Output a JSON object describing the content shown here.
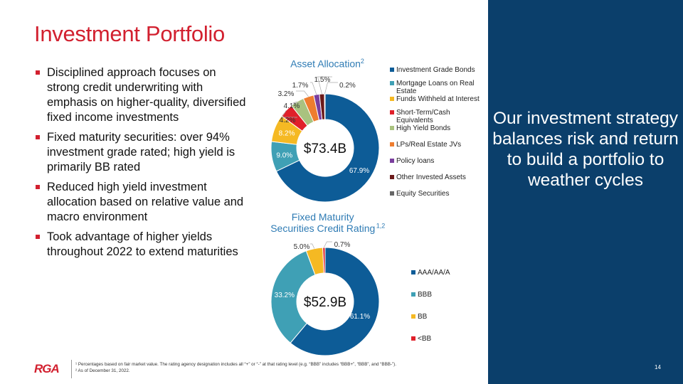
{
  "title": "Investment Portfolio",
  "bullets": [
    "Disciplined approach focuses on strong credit underwriting with emphasis on higher-quality, diversified fixed income investments",
    "Fixed maturity securities: over 94% investment grade rated; high yield is primarily BB rated",
    "Reduced high yield investment allocation based on relative value and macro environment",
    "Took advantage of higher yields throughout 2022 to extend maturities"
  ],
  "panel_text": "Our investment strategy balances risk and return to build a portfolio to weather cycles",
  "footer": {
    "logo": "RGA",
    "footnote1": "¹ Percentages based on fair market value. The rating agency designation includes all “+” or “-” at that rating level (e.g. “BBB” includes “BBB+”, “BBB”, and “BBB-”).",
    "footnote2": "² As of December 31, 2022.",
    "page": "14"
  },
  "chart_data": [
    {
      "type": "pie",
      "title": "Asset Allocation",
      "title_sup": "2",
      "center_label": "$73.4B",
      "legend_placement": "right",
      "categories": [
        "Investment Grade Bonds",
        "Mortgage Loans on Real Estate",
        "Funds Withheld at Interest",
        "Short-Term/Cash Equivalents",
        "High Yield Bonds",
        "LPs/Real Estate JVs",
        "Policy loans",
        "Other Invested Assets",
        "Equity Securities"
      ],
      "values": [
        67.9,
        9.0,
        8.2,
        4.2,
        4.1,
        3.2,
        1.7,
        1.5,
        0.2
      ],
      "labels": [
        "67.9%",
        "9.0%",
        "8.2%",
        "4.2%",
        "4.1%",
        "3.2%",
        "1.7%",
        "1.5%",
        "0.2%"
      ],
      "colors": [
        "#0d5c97",
        "#3fa0b5",
        "#f5b923",
        "#e0202a",
        "#a9c27f",
        "#ee7d2f",
        "#7a3e9d",
        "#6b1a1a",
        "#666666"
      ]
    },
    {
      "type": "pie",
      "title": "Fixed Maturity Securities Credit Rating",
      "title_sup": "1,2",
      "center_label": "$52.9B",
      "legend_placement": "right",
      "categories": [
        "AAA/AA/A",
        "BBB",
        "BB",
        "<BB"
      ],
      "values": [
        61.1,
        33.2,
        5.0,
        0.7
      ],
      "labels": [
        "61.1%",
        "33.2%",
        "5.0%",
        "0.7%"
      ],
      "colors": [
        "#0d5c97",
        "#3fa0b5",
        "#f5b923",
        "#e0202a"
      ]
    }
  ]
}
